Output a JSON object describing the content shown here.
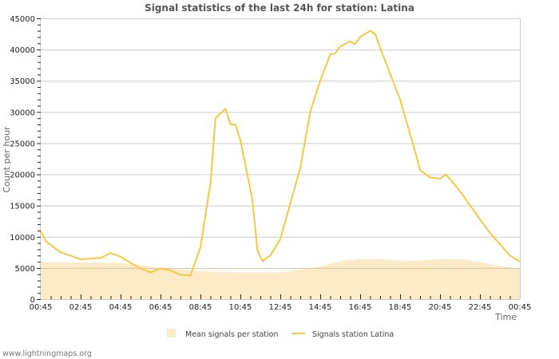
{
  "chart_data": {
    "type": "line",
    "title": "Signal statistics of the last 24h for station: Latina",
    "xlabel": "Time",
    "ylabel": "Count per hour",
    "ylim": [
      0,
      45000
    ],
    "yticks": [
      0,
      5000,
      10000,
      15000,
      20000,
      25000,
      30000,
      35000,
      40000,
      45000
    ],
    "xtick_labels": [
      "00:45",
      "02:45",
      "04:45",
      "06:45",
      "08:45",
      "10:45",
      "12:45",
      "14:45",
      "16:45",
      "18:45",
      "20:45",
      "22:45",
      "00:45"
    ],
    "grid": true,
    "legend_position": "bottom",
    "x_hours": [
      0,
      0.25,
      1,
      2,
      3,
      3.5,
      4,
      5,
      5.5,
      6,
      6.5,
      7,
      7.5,
      8,
      8.5,
      8.75,
      9.25,
      9.5,
      9.75,
      10,
      10.6,
      10.85,
      11.1,
      11.5,
      12,
      13,
      13.5,
      14,
      14.5,
      14.75,
      15,
      15.5,
      15.75,
      16,
      16.5,
      16.75,
      17,
      18,
      18.75,
      19,
      19.5,
      20,
      20.3,
      21,
      22,
      22.5,
      23,
      23.5,
      24
    ],
    "series": [
      {
        "name": "Signals station Latina",
        "type": "line",
        "color": "#f5c842",
        "values": [
          10900,
          9300,
          7500,
          6400,
          6600,
          7400,
          6800,
          4900,
          4300,
          4900,
          4600,
          3900,
          3800,
          8300,
          18500,
          29000,
          30500,
          28000,
          28000,
          25500,
          16000,
          7900,
          6100,
          7000,
          9600,
          21000,
          30000,
          35000,
          39200,
          39400,
          40500,
          41300,
          40900,
          42000,
          43000,
          42500,
          40300,
          32000,
          23700,
          20700,
          19500,
          19300,
          20000,
          17300,
          12800,
          10600,
          8800,
          7000,
          6000
        ]
      },
      {
        "name": "Mean signals per station",
        "type": "area",
        "color": "#fdebc8",
        "x_hours": [
          0,
          2,
          4,
          5,
          6,
          7,
          8,
          9,
          10,
          11,
          12,
          13,
          14,
          15,
          16,
          17,
          18,
          19,
          20,
          21,
          22,
          23,
          24
        ],
        "values": [
          5900,
          5900,
          5800,
          5500,
          5000,
          4800,
          4500,
          4400,
          4300,
          4300,
          4300,
          4700,
          5200,
          6100,
          6400,
          6400,
          6200,
          6200,
          6400,
          6400,
          6000,
          5300,
          4900
        ]
      }
    ]
  },
  "legend": {
    "items": [
      {
        "label": "Mean signals per station",
        "swatch": "area"
      },
      {
        "label": "Signals station Latina",
        "swatch": "line"
      }
    ]
  },
  "footer": {
    "text": "www.lightningmaps.org"
  }
}
